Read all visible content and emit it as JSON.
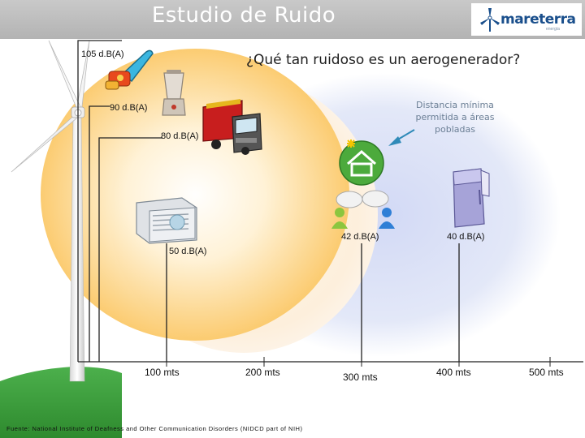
{
  "header": {
    "title": "Estudio de Ruido",
    "logo_text": "mareterra",
    "logo_sub": "energía"
  },
  "question": "¿Qué tan ruidoso es un aerogenerador?",
  "sources": [
    {
      "label": "105 d.B(A)",
      "icon": "chainsaw-icon"
    },
    {
      "label": "90 d.B(A)",
      "icon": "blender-icon"
    },
    {
      "label": "80 d.B(A)",
      "icon": "truck-icon"
    },
    {
      "label": "50 d.B(A)",
      "icon": "air-conditioner-icon"
    },
    {
      "label": "42 d.B(A)",
      "icon": "people-talking-icon"
    },
    {
      "label": "40 d.B(A)",
      "icon": "refrigerator-icon"
    }
  ],
  "distances": [
    "100 mts",
    "200 mts",
    "300 mts",
    "400 mts",
    "500 mts"
  ],
  "min_distance_note": "Distancia mínima permitida a áreas pobladas",
  "source_note": "Fuente: National Institute of Deafness and Other Communication Disorders (NIDCD part of NIH)",
  "colors": {
    "header": "#b9b9b9",
    "near_zone": "#fbd37a",
    "mid_zone": "#fdf1e0",
    "far_zone": "#dfe4f7",
    "ground": "#3a9a3a",
    "logo_blue": "#1a4f8c"
  }
}
